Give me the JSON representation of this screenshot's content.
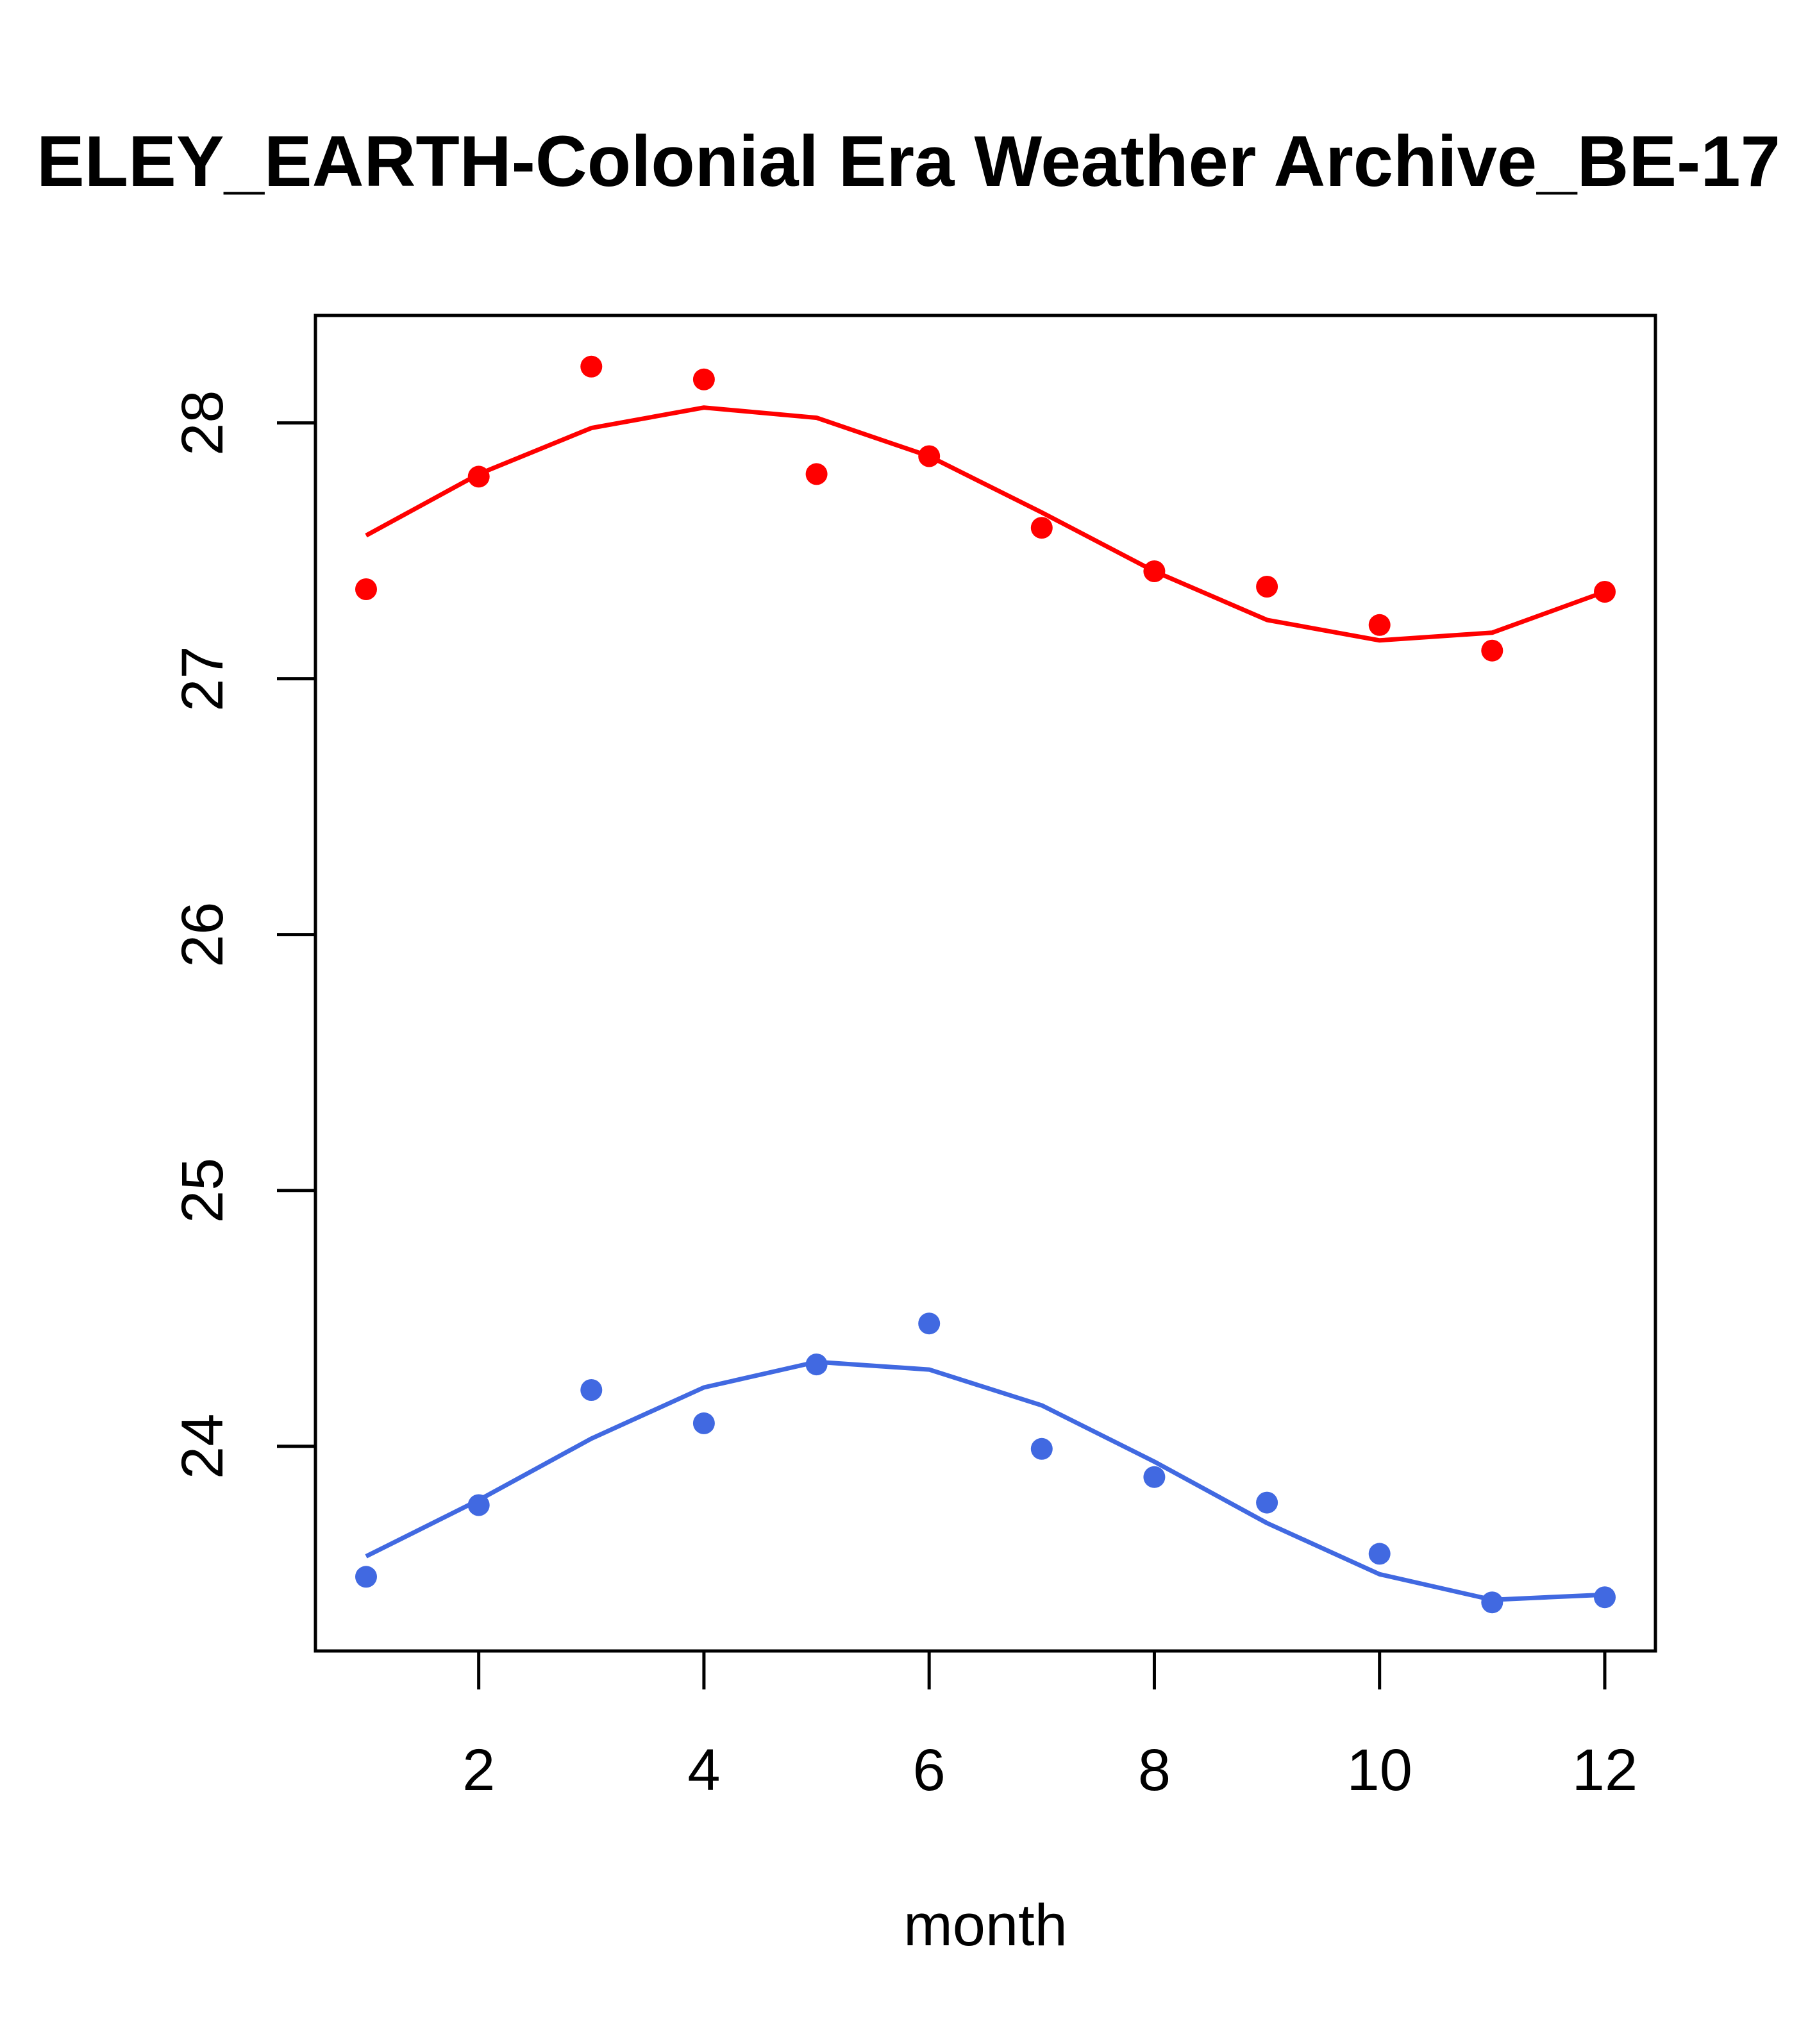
{
  "chart_data": {
    "type": "scatter",
    "title": "ELEY_EARTH-Colonial Era Weather Archive_BE-17",
    "xlabel": "month",
    "ylabel": "",
    "xlim": [
      0.55,
      12.45
    ],
    "ylim": [
      23.2,
      28.42
    ],
    "xticks": [
      2,
      4,
      6,
      8,
      10,
      12
    ],
    "yticks": [
      24,
      25,
      26,
      27,
      28
    ],
    "grid": false,
    "legend": "none",
    "series": [
      {
        "color": "#ff0000",
        "points_x": [
          1,
          2,
          3,
          4,
          5,
          6,
          7,
          8,
          9,
          10,
          11,
          12
        ],
        "points_y": [
          27.35,
          27.79,
          28.22,
          28.17,
          27.8,
          27.87,
          27.59,
          27.42,
          27.36,
          27.21,
          27.11,
          27.34
        ],
        "line_x": [
          1,
          2,
          3,
          4,
          5,
          6,
          7,
          8,
          9,
          10,
          11,
          12
        ],
        "line_y": [
          27.56,
          27.8,
          27.98,
          28.06,
          28.02,
          27.87,
          27.65,
          27.42,
          27.23,
          27.15,
          27.18,
          27.34
        ]
      },
      {
        "color": "#4169e1",
        "points_x": [
          1,
          2,
          3,
          4,
          5,
          6,
          7,
          8,
          9,
          10,
          11,
          12
        ],
        "points_y": [
          23.49,
          23.77,
          24.22,
          24.09,
          24.32,
          24.48,
          23.99,
          23.88,
          23.78,
          23.58,
          23.39,
          23.41
        ],
        "line_x": [
          1,
          2,
          3,
          4,
          5,
          6,
          7,
          8,
          9,
          10,
          11,
          12
        ],
        "line_y": [
          23.57,
          23.79,
          24.03,
          24.23,
          24.33,
          24.3,
          24.16,
          23.94,
          23.7,
          23.5,
          23.4,
          23.42
        ]
      }
    ]
  }
}
